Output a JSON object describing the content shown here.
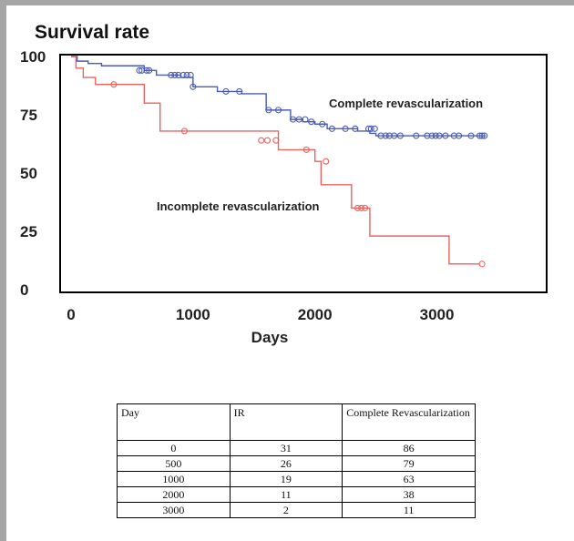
{
  "chart_data": {
    "type": "line",
    "title": "Survival rate",
    "xlabel": "Days",
    "ylabel": "",
    "xlim": [
      0,
      3900
    ],
    "ylim": [
      0,
      100
    ],
    "xticks": [
      0,
      1000,
      2000,
      3000
    ],
    "yticks": [
      0,
      25,
      50,
      75,
      100
    ],
    "grid": false,
    "series": [
      {
        "name": "Complete revascularization",
        "color": "#4a5cb5",
        "steps": [
          [
            0,
            100
          ],
          [
            50,
            98
          ],
          [
            140,
            97
          ],
          [
            250,
            96
          ],
          [
            450,
            96
          ],
          [
            600,
            94
          ],
          [
            700,
            92
          ],
          [
            800,
            92
          ],
          [
            900,
            91
          ],
          [
            1000,
            87
          ],
          [
            1150,
            87
          ],
          [
            1200,
            85
          ],
          [
            1400,
            84
          ],
          [
            1600,
            77
          ],
          [
            1700,
            77
          ],
          [
            1800,
            73
          ],
          [
            1900,
            72
          ],
          [
            2000,
            71
          ],
          [
            2100,
            69
          ],
          [
            2200,
            69
          ],
          [
            2350,
            68
          ],
          [
            2450,
            67
          ],
          [
            2500,
            66
          ],
          [
            3400,
            66
          ]
        ],
        "censor": [
          [
            560,
            94
          ],
          [
            580,
            94
          ],
          [
            620,
            94
          ],
          [
            640,
            94
          ],
          [
            820,
            92
          ],
          [
            850,
            92
          ],
          [
            880,
            92
          ],
          [
            920,
            92
          ],
          [
            950,
            92
          ],
          [
            980,
            92
          ],
          [
            1000,
            87
          ],
          [
            1270,
            85
          ],
          [
            1380,
            85
          ],
          [
            1620,
            77
          ],
          [
            1700,
            77
          ],
          [
            1820,
            73
          ],
          [
            1870,
            73
          ],
          [
            1920,
            73
          ],
          [
            1970,
            72
          ],
          [
            2060,
            71
          ],
          [
            2140,
            69
          ],
          [
            2250,
            69
          ],
          [
            2330,
            69
          ],
          [
            2440,
            69
          ],
          [
            2460,
            69
          ],
          [
            2490,
            69
          ],
          [
            2540,
            66
          ],
          [
            2580,
            66
          ],
          [
            2610,
            66
          ],
          [
            2650,
            66
          ],
          [
            2700,
            66
          ],
          [
            2830,
            66
          ],
          [
            2920,
            66
          ],
          [
            2960,
            66
          ],
          [
            2990,
            66
          ],
          [
            3020,
            66
          ],
          [
            3070,
            66
          ],
          [
            3140,
            66
          ],
          [
            3180,
            66
          ],
          [
            3280,
            66
          ],
          [
            3350,
            66
          ],
          [
            3370,
            66
          ],
          [
            3390,
            66
          ]
        ]
      },
      {
        "name": "Incomplete revascularization",
        "color": "#e8635f",
        "steps": [
          [
            0,
            100
          ],
          [
            40,
            95
          ],
          [
            100,
            91
          ],
          [
            200,
            88
          ],
          [
            400,
            88
          ],
          [
            600,
            80
          ],
          [
            730,
            68
          ],
          [
            1600,
            68
          ],
          [
            1700,
            60
          ],
          [
            2000,
            55
          ],
          [
            2050,
            45
          ],
          [
            2250,
            45
          ],
          [
            2300,
            35
          ],
          [
            2400,
            35
          ],
          [
            2450,
            23
          ],
          [
            3050,
            23
          ],
          [
            3100,
            11
          ],
          [
            3350,
            11
          ]
        ],
        "censor": [
          [
            350,
            88
          ],
          [
            930,
            68
          ],
          [
            1560,
            64
          ],
          [
            1610,
            64
          ],
          [
            1680,
            64
          ],
          [
            1930,
            60
          ],
          [
            2090,
            55
          ],
          [
            2350,
            35
          ],
          [
            2380,
            35
          ],
          [
            2410,
            35
          ],
          [
            3370,
            11
          ]
        ]
      }
    ],
    "annotations": [
      {
        "text": "Complete revascularization",
        "series": 0
      },
      {
        "text": "Incomplete revascularization",
        "series": 1
      }
    ]
  },
  "table": {
    "headers": [
      "Day",
      "IR",
      "Complete Revascularization"
    ],
    "rows": [
      [
        "0",
        "31",
        "86"
      ],
      [
        "500",
        "26",
        "79"
      ],
      [
        "1000",
        "19",
        "63"
      ],
      [
        "2000",
        "11",
        "38"
      ],
      [
        "3000",
        "2",
        "11"
      ]
    ]
  }
}
